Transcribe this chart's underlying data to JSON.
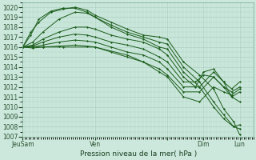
{
  "xlabel": "Pression niveau de la mer( hPa )",
  "ylim": [
    1007,
    1020.5
  ],
  "xlim": [
    0,
    115
  ],
  "yticks": [
    1007,
    1008,
    1009,
    1010,
    1011,
    1012,
    1013,
    1014,
    1015,
    1016,
    1017,
    1018,
    1019,
    1020
  ],
  "xtick_positions": [
    0,
    36,
    72,
    90,
    108
  ],
  "xtick_labels": [
    "JeuSam",
    "Ven",
    "",
    "Dim",
    "Lun"
  ],
  "bg_color": "#cce8dc",
  "grid_color": "#a8ccbe",
  "line_color": "#1a5c1a",
  "lines": [
    [
      0,
      1016.0,
      4,
      1017.5,
      8,
      1018.5,
      14,
      1019.5,
      20,
      1019.8,
      26,
      1020.0,
      32,
      1019.7,
      36,
      1019.2,
      44,
      1018.5,
      52,
      1017.8,
      60,
      1017.2,
      68,
      1017.0,
      72,
      1016.8,
      80,
      1014.5,
      88,
      1013.2,
      95,
      1011.8,
      100,
      1009.8,
      105,
      1008.5,
      108,
      1007.2
    ],
    [
      0,
      1016.0,
      4,
      1017.2,
      8,
      1018.8,
      14,
      1019.6,
      20,
      1019.9,
      26,
      1019.9,
      32,
      1019.5,
      36,
      1019.0,
      44,
      1018.2,
      52,
      1017.5,
      60,
      1017.0,
      68,
      1016.5,
      72,
      1016.3,
      80,
      1014.0,
      88,
      1012.5,
      95,
      1010.5,
      100,
      1009.2,
      105,
      1008.0,
      108,
      1007.8
    ],
    [
      0,
      1016.0,
      5,
      1016.5,
      10,
      1017.5,
      18,
      1018.8,
      26,
      1019.5,
      32,
      1019.4,
      36,
      1019.0,
      44,
      1018.0,
      52,
      1017.3,
      60,
      1016.8,
      68,
      1016.0,
      72,
      1015.8,
      80,
      1013.5,
      88,
      1012.0,
      95,
      1010.0,
      100,
      1008.8,
      105,
      1008.0,
      108,
      1008.2
    ],
    [
      0,
      1016.0,
      5,
      1016.2,
      10,
      1016.8,
      18,
      1017.5,
      26,
      1018.0,
      32,
      1018.0,
      36,
      1017.8,
      44,
      1017.2,
      52,
      1016.8,
      60,
      1016.5,
      68,
      1015.8,
      72,
      1015.2,
      80,
      1013.0,
      86,
      1012.0,
      90,
      1013.5,
      95,
      1013.8,
      100,
      1012.5,
      104,
      1011.0,
      108,
      1011.5
    ],
    [
      0,
      1016.0,
      5,
      1016.1,
      10,
      1016.5,
      18,
      1017.0,
      26,
      1017.3,
      32,
      1017.2,
      36,
      1017.0,
      44,
      1016.5,
      52,
      1016.2,
      60,
      1015.8,
      68,
      1015.0,
      72,
      1014.5,
      80,
      1012.5,
      86,
      1012.5,
      90,
      1013.2,
      95,
      1013.0,
      100,
      1012.0,
      104,
      1011.0,
      108,
      1010.5
    ],
    [
      0,
      1016.0,
      5,
      1016.0,
      10,
      1016.2,
      18,
      1016.5,
      26,
      1016.7,
      32,
      1016.6,
      36,
      1016.5,
      44,
      1016.0,
      52,
      1015.5,
      60,
      1015.2,
      68,
      1014.5,
      72,
      1013.8,
      80,
      1012.0,
      88,
      1012.0,
      95,
      1013.5,
      100,
      1012.5,
      104,
      1011.8,
      108,
      1012.5
    ],
    [
      0,
      1016.0,
      5,
      1015.9,
      10,
      1016.0,
      18,
      1016.1,
      26,
      1016.2,
      32,
      1016.1,
      36,
      1016.0,
      44,
      1015.5,
      52,
      1015.0,
      60,
      1014.5,
      68,
      1013.8,
      72,
      1013.2,
      80,
      1011.5,
      88,
      1011.5,
      95,
      1013.0,
      100,
      1012.0,
      104,
      1011.5,
      108,
      1012.0
    ],
    [
      0,
      1016.0,
      10,
      1016.0,
      20,
      1016.0,
      36,
      1016.0,
      52,
      1015.2,
      60,
      1014.5,
      68,
      1013.5,
      72,
      1013.0,
      80,
      1011.0,
      88,
      1010.5,
      95,
      1012.0,
      100,
      1011.5,
      104,
      1011.2,
      108,
      1011.8
    ]
  ]
}
